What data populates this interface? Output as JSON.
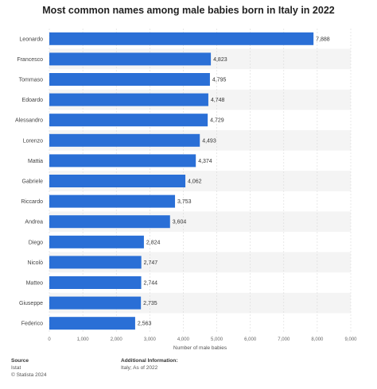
{
  "colors": {
    "bar": "#2a6fd6",
    "stripe": "#f4f4f4",
    "grid": "#d9d9d9"
  },
  "chart_data": {
    "type": "bar",
    "orientation": "horizontal",
    "title": "Most common names among male babies born in Italy in 2022",
    "xlabel": "Number of male babies",
    "ylabel": "",
    "xlim": [
      0,
      9000
    ],
    "xticks": [
      0,
      1000,
      2000,
      3000,
      4000,
      5000,
      6000,
      7000,
      8000,
      9000
    ],
    "xtick_labels": [
      "0",
      "1,000",
      "2,000",
      "3,000",
      "4,000",
      "5,000",
      "6,000",
      "7,000",
      "8,000",
      "9,000"
    ],
    "grid": true,
    "categories": [
      "Leonardo",
      "Francesco",
      "Tommaso",
      "Edoardo",
      "Alessandro",
      "Lorenzo",
      "Mattia",
      "Gabriele",
      "Riccardo",
      "Andrea",
      "Diego",
      "Nicolò",
      "Matteo",
      "Giuseppe",
      "Federico"
    ],
    "values": [
      7888,
      4823,
      4795,
      4748,
      4729,
      4493,
      4374,
      4062,
      3753,
      3604,
      2824,
      2747,
      2744,
      2735,
      2563
    ],
    "value_labels": [
      "7,888",
      "4,823",
      "4,795",
      "4,748",
      "4,729",
      "4,493",
      "4,374",
      "4,062",
      "3,753",
      "3,604",
      "2,824",
      "2,747",
      "2,744",
      "2,735",
      "2,563"
    ]
  },
  "footer": {
    "source_heading": "Source",
    "source_lines": [
      "Istat",
      "© Statista 2024"
    ],
    "info_heading": "Additional Information:",
    "info_lines": [
      "Italy; As of 2022"
    ]
  }
}
